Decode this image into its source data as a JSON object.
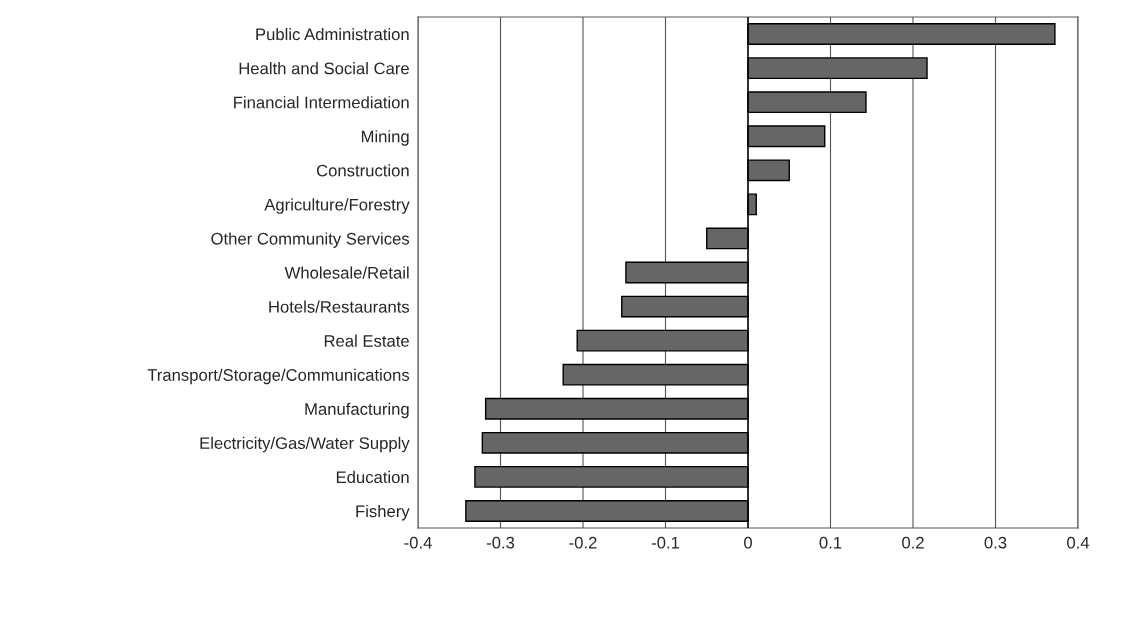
{
  "chart_data": {
    "type": "bar",
    "orientation": "horizontal",
    "categories": [
      "Public Administration",
      "Health and Social Care",
      "Financial Intermediation",
      "Mining",
      "Construction",
      "Agriculture/Forestry",
      "Other Community Services",
      "Wholesale/Retail",
      "Hotels/Restaurants",
      "Real Estate",
      "Transport/Storage/Communications",
      "Manufacturing",
      "Electricity/Gas/Water Supply",
      "Education",
      "Fishery"
    ],
    "values": [
      0.372,
      0.217,
      0.143,
      0.093,
      0.05,
      0.01,
      -0.05,
      -0.148,
      -0.153,
      -0.207,
      -0.224,
      -0.318,
      -0.322,
      -0.331,
      -0.342
    ],
    "color": "#666666",
    "xlim": [
      -0.4,
      0.4
    ],
    "xticks": [
      -0.4,
      -0.3,
      -0.2,
      -0.1,
      0,
      0.1,
      0.2,
      0.3,
      0.4
    ],
    "grid": "x"
  }
}
